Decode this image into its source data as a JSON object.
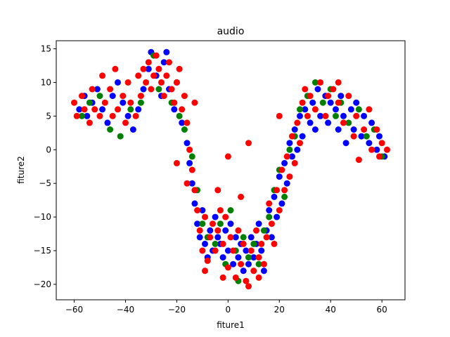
{
  "chart_data": {
    "type": "scatter",
    "title": "audio",
    "xlabel": "fiture1",
    "ylabel": "fiture2",
    "xlim": [
      -67,
      69
    ],
    "ylim": [
      -22.3,
      16.2
    ],
    "xticks": [
      -60,
      -40,
      -20,
      0,
      20,
      40,
      60
    ],
    "yticks": [
      -20,
      -15,
      -10,
      -5,
      0,
      5,
      10,
      15
    ],
    "grid": false,
    "legend": "none",
    "series": [
      {
        "color": "#0000ff",
        "points": [
          [
            -58,
            6
          ],
          [
            -56,
            8
          ],
          [
            -55,
            5
          ],
          [
            -53,
            7
          ],
          [
            -51,
            9
          ],
          [
            -49,
            6
          ],
          [
            -47,
            4
          ],
          [
            -45,
            8
          ],
          [
            -43,
            10
          ],
          [
            -41,
            7
          ],
          [
            -39,
            5
          ],
          [
            -37,
            3
          ],
          [
            -35,
            6
          ],
          [
            -33,
            9
          ],
          [
            -31,
            12
          ],
          [
            -30,
            14.5
          ],
          [
            -28,
            11
          ],
          [
            -26,
            8
          ],
          [
            -25,
            13
          ],
          [
            -24,
            14.5
          ],
          [
            -23,
            9
          ],
          [
            -21,
            6
          ],
          [
            -20,
            10
          ],
          [
            -18,
            4
          ],
          [
            -16,
            1
          ],
          [
            -15,
            -2
          ],
          [
            -14,
            -5
          ],
          [
            -13,
            -8
          ],
          [
            -12,
            -11
          ],
          [
            -11,
            -13
          ],
          [
            -10,
            -9
          ],
          [
            -9,
            -14
          ],
          [
            -8,
            -16
          ],
          [
            -7,
            -12
          ],
          [
            -6,
            -15
          ],
          [
            -5,
            -10
          ],
          [
            -4,
            -13
          ],
          [
            -3,
            -14
          ],
          [
            -2,
            -16
          ],
          [
            -1,
            -12
          ],
          [
            0,
            -15
          ],
          [
            1,
            -11
          ],
          [
            2,
            -17
          ],
          [
            3,
            -13
          ],
          [
            4,
            -16
          ],
          [
            5,
            -14
          ],
          [
            6,
            -18
          ],
          [
            7,
            -15
          ],
          [
            8,
            -17
          ],
          [
            9,
            -13
          ],
          [
            10,
            -16
          ],
          [
            11,
            -14
          ],
          [
            12,
            -11
          ],
          [
            13,
            -15
          ],
          [
            14,
            -18
          ],
          [
            15,
            -12
          ],
          [
            16,
            -9
          ],
          [
            17,
            -13
          ],
          [
            18,
            -7
          ],
          [
            19,
            -10
          ],
          [
            20,
            -4
          ],
          [
            21,
            -8
          ],
          [
            22,
            -2
          ],
          [
            23,
            -5
          ],
          [
            24,
            1
          ],
          [
            25,
            -1
          ],
          [
            26,
            3
          ],
          [
            27,
            0
          ],
          [
            28,
            5
          ],
          [
            29,
            2
          ],
          [
            30,
            6
          ],
          [
            32,
            4
          ],
          [
            33,
            7
          ],
          [
            34,
            3
          ],
          [
            35,
            9
          ],
          [
            36,
            5
          ],
          [
            38,
            8
          ],
          [
            39,
            4
          ],
          [
            40,
            7
          ],
          [
            42,
            6
          ],
          [
            43,
            3
          ],
          [
            44,
            8
          ],
          [
            45,
            5
          ],
          [
            46,
            1
          ],
          [
            48,
            6
          ],
          [
            49,
            3
          ],
          [
            50,
            7
          ],
          [
            52,
            2
          ],
          [
            53,
            5
          ],
          [
            55,
            1
          ],
          [
            56,
            4
          ],
          [
            58,
            0
          ],
          [
            59,
            2
          ],
          [
            61,
            -1
          ]
        ]
      },
      {
        "color": "#008000",
        "points": [
          [
            -57,
            5
          ],
          [
            -54,
            7
          ],
          [
            -50,
            8
          ],
          [
            -46,
            3
          ],
          [
            -42,
            2
          ],
          [
            -38,
            6
          ],
          [
            -34,
            7
          ],
          [
            -29,
            14
          ],
          [
            -27,
            9
          ],
          [
            -22,
            7
          ],
          [
            -19,
            5
          ],
          [
            -17,
            3
          ],
          [
            -14,
            -1
          ],
          [
            -12,
            -6
          ],
          [
            -10,
            -11
          ],
          [
            -8,
            -13
          ],
          [
            -5,
            -14
          ],
          [
            -3,
            -11
          ],
          [
            -1,
            -17
          ],
          [
            1,
            -9
          ],
          [
            3,
            -15
          ],
          [
            4,
            -19.5
          ],
          [
            6,
            -13
          ],
          [
            8,
            -16
          ],
          [
            10,
            -14
          ],
          [
            12,
            -17
          ],
          [
            14,
            -12
          ],
          [
            16,
            -10
          ],
          [
            18,
            -6
          ],
          [
            20,
            -3
          ],
          [
            22,
            -7
          ],
          [
            24,
            0
          ],
          [
            26,
            2
          ],
          [
            28,
            6
          ],
          [
            31,
            8
          ],
          [
            34,
            10
          ],
          [
            37,
            7
          ],
          [
            40,
            9
          ],
          [
            42,
            5
          ],
          [
            44,
            7
          ],
          [
            47,
            4
          ],
          [
            51,
            6
          ],
          [
            54,
            2
          ],
          [
            57,
            3
          ],
          [
            60,
            -1
          ]
        ]
      },
      {
        "color": "#ff0000",
        "points": [
          [
            -60,
            7
          ],
          [
            -59,
            5
          ],
          [
            -57,
            8
          ],
          [
            -56,
            6
          ],
          [
            -54,
            4
          ],
          [
            -53,
            9
          ],
          [
            -52,
            6
          ],
          [
            -50,
            5
          ],
          [
            -49,
            11
          ],
          [
            -48,
            7
          ],
          [
            -46,
            9
          ],
          [
            -45,
            5
          ],
          [
            -44,
            12
          ],
          [
            -43,
            6
          ],
          [
            -41,
            8
          ],
          [
            -40,
            4
          ],
          [
            -39,
            10
          ],
          [
            -38,
            7
          ],
          [
            -36,
            5
          ],
          [
            -35,
            11
          ],
          [
            -34,
            8
          ],
          [
            -33,
            12
          ],
          [
            -32,
            10
          ],
          [
            -31,
            13
          ],
          [
            -30,
            9
          ],
          [
            -29,
            11
          ],
          [
            -28,
            14
          ],
          [
            -27,
            12
          ],
          [
            -26,
            10
          ],
          [
            -25,
            8
          ],
          [
            -24,
            11
          ],
          [
            -23,
            13
          ],
          [
            -22,
            9
          ],
          [
            -21,
            7
          ],
          [
            -20,
            10
          ],
          [
            -19,
            12
          ],
          [
            -18,
            6
          ],
          [
            -17,
            8
          ],
          [
            -16,
            4
          ],
          [
            -15,
            0
          ],
          [
            -14,
            -3
          ],
          [
            -13,
            -6
          ],
          [
            -12,
            -9
          ],
          [
            -11,
            -12
          ],
          [
            -10,
            -15
          ],
          [
            -9,
            -10
          ],
          [
            -8,
            -16.5
          ],
          [
            -7,
            -13
          ],
          [
            -6,
            -11
          ],
          [
            -5,
            -15
          ],
          [
            -4,
            -12
          ],
          [
            -3,
            -9
          ],
          [
            -2,
            -14
          ],
          [
            -1,
            -10
          ],
          [
            0,
            -17.5
          ],
          [
            1,
            -13
          ],
          [
            2,
            -15
          ],
          [
            3,
            -19
          ],
          [
            4,
            -12
          ],
          [
            5,
            -17
          ],
          [
            6,
            -14
          ],
          [
            7,
            -19.5
          ],
          [
            8,
            -20.3
          ],
          [
            9,
            -15
          ],
          [
            10,
            -18
          ],
          [
            11,
            -12
          ],
          [
            12,
            -16
          ],
          [
            13,
            -14
          ],
          [
            14,
            -17
          ],
          [
            15,
            -13
          ],
          [
            16,
            -8
          ],
          [
            17,
            -11
          ],
          [
            18,
            -14
          ],
          [
            19,
            -6
          ],
          [
            20,
            -9
          ],
          [
            21,
            -3
          ],
          [
            22,
            -6
          ],
          [
            23,
            -1
          ],
          [
            24,
            -4
          ],
          [
            25,
            2
          ],
          [
            26,
            -2
          ],
          [
            27,
            4
          ],
          [
            28,
            1
          ],
          [
            29,
            7
          ],
          [
            30,
            9
          ],
          [
            31,
            5
          ],
          [
            32,
            8
          ],
          [
            34,
            6
          ],
          [
            36,
            10
          ],
          [
            38,
            5
          ],
          [
            39,
            8
          ],
          [
            41,
            9
          ],
          [
            43,
            7
          ],
          [
            45,
            4
          ],
          [
            47,
            8
          ],
          [
            49,
            2
          ],
          [
            50,
            5
          ],
          [
            51,
            -1.5
          ],
          [
            53,
            3
          ],
          [
            55,
            6
          ],
          [
            56,
            0
          ],
          [
            58,
            3
          ],
          [
            59,
            -1
          ],
          [
            60,
            1
          ],
          [
            62,
            0
          ],
          [
            -13,
            7
          ],
          [
            -16,
            -5
          ],
          [
            -4,
            -6
          ],
          [
            5,
            -7
          ],
          [
            8,
            1
          ],
          [
            0,
            -1
          ],
          [
            -20,
            -2
          ],
          [
            -9,
            -18
          ],
          [
            12,
            -19
          ],
          [
            -2,
            -19
          ],
          [
            43,
            10
          ],
          [
            20,
            5
          ]
        ]
      }
    ]
  }
}
